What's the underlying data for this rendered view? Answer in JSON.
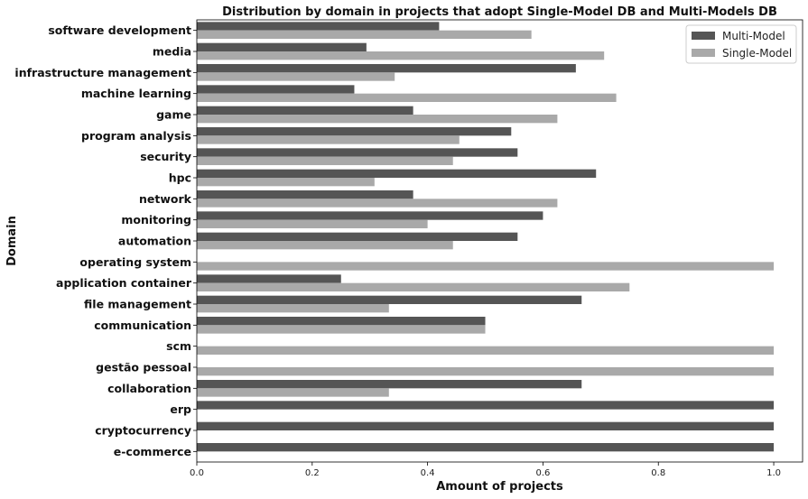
{
  "chart_data": {
    "type": "bar",
    "orientation": "horizontal",
    "title": "Distribution by domain in projects that adopt Single-Model DB and Multi-Models DB",
    "xlabel": "Amount of projects",
    "ylabel": "Domain",
    "xlim": [
      0,
      1.05
    ],
    "xticks": [
      "0.0",
      "0.2",
      "0.4",
      "0.6",
      "0.8",
      "1.0"
    ],
    "grid": false,
    "legend_position": "top-right",
    "categories": [
      "software development",
      "media",
      "infrastructure management",
      "machine learning",
      "game",
      "program analysis",
      "security",
      "hpc",
      "network",
      "monitoring",
      "automation",
      "operating system",
      "application container",
      "file management",
      "communication",
      "scm",
      "gestão pessoal",
      "collaboration",
      "erp",
      "cryptocurrency",
      "e-commerce"
    ],
    "series": [
      {
        "name": "Multi-Model",
        "color": "#555555",
        "values": [
          0.42,
          0.294,
          0.657,
          0.273,
          0.375,
          0.545,
          0.556,
          0.692,
          0.375,
          0.6,
          0.556,
          0,
          0.25,
          0.667,
          0.5,
          0,
          0,
          0.667,
          1.0,
          1.0,
          1.0
        ]
      },
      {
        "name": "Single-Model",
        "color": "#a9a9a9",
        "values": [
          0.58,
          0.706,
          0.343,
          0.727,
          0.625,
          0.455,
          0.444,
          0.308,
          0.625,
          0.4,
          0.444,
          1.0,
          0.75,
          0.333,
          0.5,
          1.0,
          1.0,
          0.333,
          0,
          0,
          0
        ]
      }
    ]
  }
}
